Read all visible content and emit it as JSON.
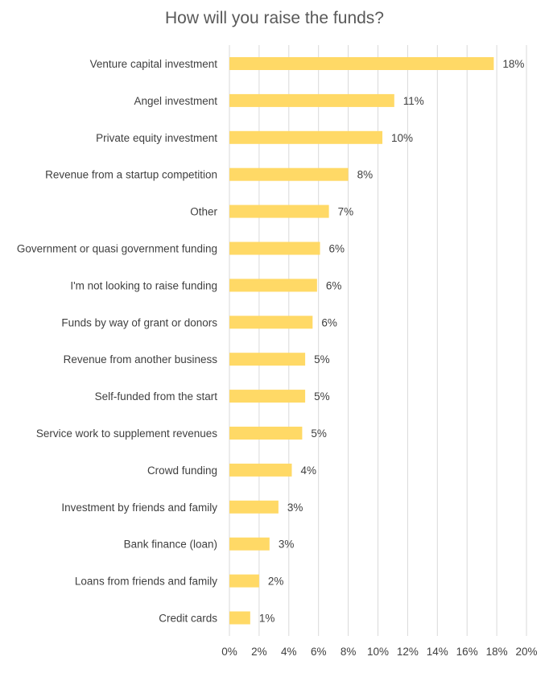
{
  "chart_data": {
    "type": "bar",
    "orientation": "horizontal",
    "title": "How will you raise the funds?",
    "xlabel": "",
    "ylabel": "",
    "grid": true,
    "legend": "none",
    "xlim": [
      0,
      20
    ],
    "x_ticks": [
      "0%",
      "2%",
      "4%",
      "6%",
      "8%",
      "10%",
      "12%",
      "14%",
      "16%",
      "18%",
      "20%"
    ],
    "bar_color": "#FFD966",
    "categories": [
      "Venture capital investment",
      "Angel investment",
      "Private equity investment",
      "Revenue from a startup competition",
      "Other",
      "Government or quasi government funding",
      "I'm not looking to raise funding",
      "Funds by way of grant or donors",
      "Revenue from another business",
      "Self-funded from the start",
      "Service work to supplement revenues",
      "Crowd funding",
      "Investment by friends and family",
      "Bank finance (loan)",
      "Loans from friends and family",
      "Credit cards"
    ],
    "values": [
      17.8,
      11.1,
      10.3,
      8.0,
      6.7,
      6.1,
      5.9,
      5.6,
      5.1,
      5.1,
      4.9,
      4.2,
      3.3,
      2.7,
      2.0,
      1.4
    ],
    "data_labels": [
      "18%",
      "11%",
      "10%",
      "8%",
      "7%",
      "6%",
      "6%",
      "6%",
      "5%",
      "5%",
      "5%",
      "4%",
      "3%",
      "3%",
      "2%",
      "1%"
    ]
  }
}
